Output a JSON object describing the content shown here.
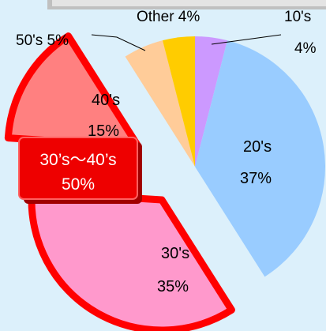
{
  "chart_data": {
    "type": "pie",
    "slices": [
      {
        "name": "10's",
        "value": 4,
        "label": "10's",
        "pct_label": "4%",
        "color": "#cc99ff"
      },
      {
        "name": "20's",
        "value": 37,
        "label": "20's",
        "pct_label": "37%",
        "color": "#99ccff"
      },
      {
        "name": "30's",
        "value": 35,
        "label": "30's",
        "pct_label": "35%",
        "color": "#ff99cc",
        "exploded": true
      },
      {
        "name": "40's",
        "value": 15,
        "label": "40's",
        "pct_label": "15%",
        "color": "#ff8080",
        "exploded": true
      },
      {
        "name": "50's",
        "value": 5,
        "label": "50's 5%",
        "color": "#ffcc99"
      },
      {
        "name": "Other",
        "value": 4,
        "label": "Other 4%",
        "color": "#ffcc00"
      }
    ],
    "callout": {
      "line1": "30’s～40’s",
      "line2": "50%"
    },
    "highlight_color": "#ff0000"
  }
}
